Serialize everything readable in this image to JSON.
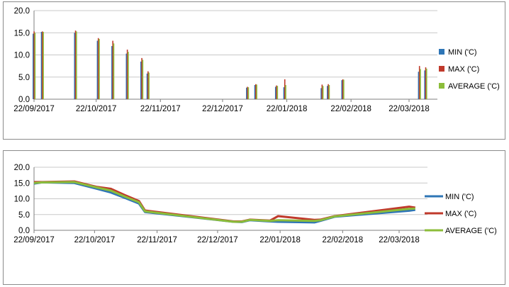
{
  "chart_data": [
    {
      "type": "bar",
      "ylim": [
        0,
        20
      ],
      "yticks": [
        "0.0",
        "5.0",
        "10.0",
        "15.0",
        "20.0"
      ],
      "xticks": [
        "22/09/2017",
        "22/10/2017",
        "22/11/2017",
        "22/12/2017",
        "22/01/2018",
        "22/02/2018",
        "22/03/2018"
      ],
      "legend_position": "right",
      "grid": true,
      "series": [
        {
          "name": "MIN ('C)",
          "color": "#2e75b6"
        },
        {
          "name": "MAX ('C)",
          "color": "#c0392b"
        },
        {
          "name": "AVERAGE ('C)",
          "color": "#8cbd3a"
        }
      ],
      "dates": [
        "2017-09-22",
        "2017-09-26",
        "2017-10-12",
        "2017-10-23",
        "2017-10-30",
        "2017-11-06",
        "2017-11-13",
        "2017-11-16",
        "2018-01-03",
        "2018-01-07",
        "2018-01-17",
        "2018-01-21",
        "2018-02-08",
        "2018-02-11",
        "2018-02-18",
        "2018-03-27",
        "2018-03-30"
      ],
      "min": [
        14.8,
        15.2,
        15.0,
        13.2,
        12.0,
        10.3,
        8.5,
        5.8,
        2.6,
        3.2,
        2.8,
        2.7,
        2.5,
        3.0,
        4.3,
        6.2,
        6.5
      ],
      "max": [
        15.3,
        15.3,
        15.5,
        13.8,
        13.2,
        11.2,
        9.3,
        6.3,
        2.8,
        3.4,
        3.1,
        4.5,
        3.3,
        3.4,
        4.5,
        7.5,
        7.2
      ],
      "average": [
        15.0,
        15.2,
        15.3,
        13.6,
        12.6,
        10.7,
        8.9,
        6.0,
        2.7,
        3.3,
        3.0,
        3.2,
        3.0,
        3.2,
        4.4,
        6.8,
        6.9
      ]
    },
    {
      "type": "line",
      "ylim": [
        0,
        20
      ],
      "yticks": [
        "0.0",
        "5.0",
        "10.0",
        "15.0",
        "20.0"
      ],
      "xticks": [
        "22/09/2017",
        "22/10/2017",
        "22/11/2017",
        "22/12/2017",
        "22/01/2018",
        "22/02/2018",
        "22/03/2018"
      ],
      "legend_position": "right",
      "grid": true,
      "series": [
        {
          "name": "MIN ('C)",
          "color": "#2e75b6"
        },
        {
          "name": "MAX ('C)",
          "color": "#c0392b"
        },
        {
          "name": "AVERAGE ('C)",
          "color": "#8cbd3a"
        }
      ],
      "dates": [
        "2017-09-22",
        "2017-09-26",
        "2017-10-12",
        "2017-10-23",
        "2017-10-30",
        "2017-11-06",
        "2017-11-13",
        "2017-11-16",
        "2017-12-30",
        "2018-01-03",
        "2018-01-07",
        "2018-01-17",
        "2018-01-21",
        "2018-02-08",
        "2018-02-11",
        "2018-02-18",
        "2018-03-27",
        "2018-03-30"
      ],
      "min": [
        14.8,
        15.2,
        15.0,
        13.2,
        12.0,
        10.3,
        8.5,
        5.8,
        2.7,
        2.6,
        3.2,
        2.8,
        2.7,
        2.5,
        3.0,
        4.3,
        6.2,
        6.5
      ],
      "max": [
        15.3,
        15.3,
        15.5,
        13.8,
        13.2,
        11.2,
        9.3,
        6.3,
        2.8,
        2.8,
        3.4,
        3.1,
        4.5,
        3.3,
        3.4,
        4.5,
        7.5,
        7.2
      ],
      "average": [
        15.0,
        15.2,
        15.3,
        13.6,
        12.6,
        10.7,
        8.9,
        6.0,
        2.7,
        2.7,
        3.3,
        3.0,
        3.2,
        3.0,
        3.2,
        4.4,
        6.8,
        6.9
      ]
    }
  ]
}
